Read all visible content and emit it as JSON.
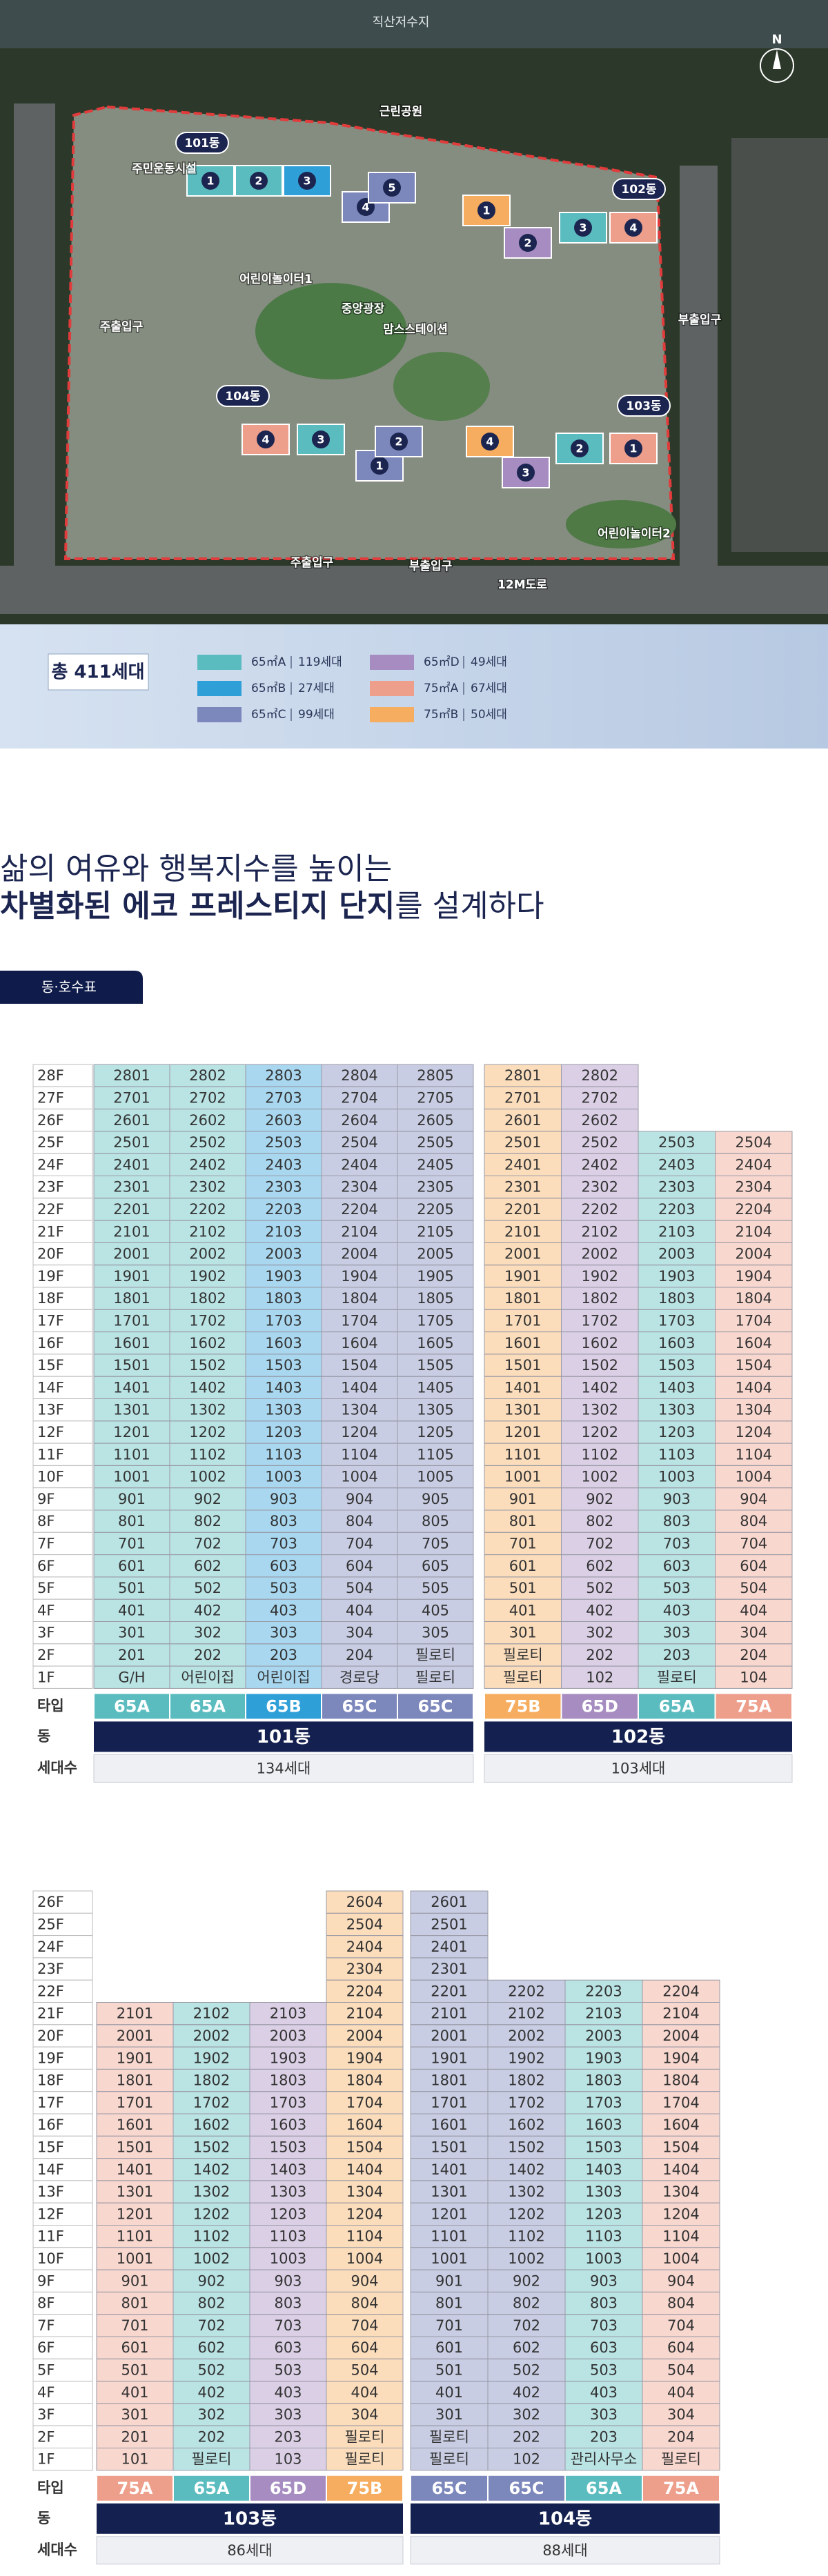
{
  "site_plan": {
    "reservoir": "직산저수지",
    "north": "N",
    "buildings": [
      {
        "name": "101동",
        "units": [
          {
            "no": "1",
            "color": "#5bbcbf"
          },
          {
            "no": "2",
            "color": "#5bbcbf"
          },
          {
            "no": "3",
            "color": "#2f9fd8"
          },
          {
            "no": "4",
            "color": "#7c87bc"
          },
          {
            "no": "5",
            "color": "#7c87bc"
          }
        ]
      },
      {
        "name": "102동",
        "units": [
          {
            "no": "1",
            "color": "#f6ad5f"
          },
          {
            "no": "2",
            "color": "#a68cc0"
          },
          {
            "no": "3",
            "color": "#5bbcbf"
          },
          {
            "no": "4",
            "color": "#ee9f8c"
          }
        ]
      },
      {
        "name": "103동",
        "units": [
          {
            "no": "4",
            "color": "#f6ad5f"
          },
          {
            "no": "3",
            "color": "#a68cc0"
          },
          {
            "no": "2",
            "color": "#5bbcbf"
          },
          {
            "no": "1",
            "color": "#ee9f8c"
          }
        ]
      },
      {
        "name": "104동",
        "units": [
          {
            "no": "4",
            "color": "#ee9f8c"
          },
          {
            "no": "3",
            "color": "#5bbcbf"
          },
          {
            "no": "1",
            "color": "#7c87bc"
          },
          {
            "no": "2",
            "color": "#7c87bc"
          }
        ]
      }
    ],
    "labels": [
      "주민운동시설",
      "어린이놀이터1",
      "중앙광장",
      "맘스스테이션",
      "주출입구",
      "부출입구",
      "주출입구",
      "부출입구",
      "어린이놀이터2",
      "12M도로",
      "근린공원"
    ],
    "total": "총 411세대",
    "legend": [
      {
        "name": "65㎡A",
        "count": "119세대",
        "color": "#5bbcbf"
      },
      {
        "name": "65㎡B",
        "count": "27세대",
        "color": "#2f9fd8"
      },
      {
        "name": "65㎡C",
        "count": "99세대",
        "color": "#7c87bc"
      },
      {
        "name": "65㎡D",
        "count": "49세대",
        "color": "#a68cc0"
      },
      {
        "name": "75㎡A",
        "count": "67세대",
        "color": "#ee9f8c"
      },
      {
        "name": "75㎡B",
        "count": "50세대",
        "color": "#f6ad5f"
      }
    ]
  },
  "headline": {
    "line1": "삶의 여유와 행복지수를 높이는",
    "line2_bold": "차별화된 에코 프레스티지 단지",
    "line2_rest": "를 설계하다"
  },
  "badge": "동·호수표",
  "footer_labels": [
    "타입",
    "동",
    "세대수"
  ],
  "tables": [
    {
      "floors": [
        "28F",
        "27F",
        "26F",
        "25F",
        "24F",
        "23F",
        "22F",
        "21F",
        "20F",
        "19F",
        "18F",
        "17F",
        "16F",
        "15F",
        "14F",
        "13F",
        "12F",
        "11F",
        "10F",
        "9F",
        "8F",
        "7F",
        "6F",
        "5F",
        "4F",
        "3F",
        "2F",
        "1F"
      ],
      "buildings": [
        {
          "name": "101동",
          "households": "134세대",
          "columns": [
            {
              "type": "65A",
              "color": "#5bbcbf",
              "cells": [
                2801,
                2701,
                2601,
                2501,
                2401,
                2301,
                2201,
                2101,
                2001,
                1901,
                1801,
                1701,
                1601,
                1501,
                1401,
                1301,
                1201,
                1101,
                1001,
                901,
                801,
                701,
                601,
                501,
                401,
                301,
                201,
                "G/H"
              ]
            },
            {
              "type": "65A",
              "color": "#5bbcbf",
              "cells": [
                2802,
                2702,
                2602,
                2502,
                2402,
                2302,
                2202,
                2102,
                2002,
                1902,
                1802,
                1702,
                1602,
                1502,
                1402,
                1302,
                1202,
                1102,
                1002,
                902,
                802,
                702,
                602,
                502,
                402,
                302,
                202,
                "어린이집"
              ]
            },
            {
              "type": "65B",
              "color": "#2f9fd8",
              "cells": [
                2803,
                2703,
                2603,
                2503,
                2403,
                2303,
                2203,
                2103,
                2003,
                1903,
                1803,
                1703,
                1603,
                1503,
                1403,
                1303,
                1203,
                1103,
                1003,
                903,
                803,
                703,
                603,
                503,
                403,
                303,
                203,
                "어린이집"
              ]
            },
            {
              "type": "65C",
              "color": "#7c87bc",
              "cells": [
                2804,
                2704,
                2604,
                2504,
                2404,
                2304,
                2204,
                2104,
                2004,
                1904,
                1804,
                1704,
                1604,
                1504,
                1404,
                1304,
                1204,
                1104,
                1004,
                904,
                804,
                704,
                604,
                504,
                404,
                304,
                204,
                "경로당"
              ]
            },
            {
              "type": "65C",
              "color": "#7c87bc",
              "cells": [
                2805,
                2705,
                2605,
                2505,
                2405,
                2305,
                2205,
                2105,
                2005,
                1905,
                1805,
                1705,
                1605,
                1505,
                1405,
                1305,
                1205,
                1105,
                1005,
                905,
                805,
                705,
                605,
                505,
                405,
                305,
                "필로티",
                "필로티"
              ]
            }
          ]
        },
        {
          "name": "102동",
          "households": "103세대",
          "columns": [
            {
              "type": "75B",
              "color": "#f6ad5f",
              "cells": [
                2801,
                2701,
                2601,
                2501,
                2401,
                2301,
                2201,
                2101,
                2001,
                1901,
                1801,
                1701,
                1601,
                1501,
                1401,
                1301,
                1201,
                1101,
                1001,
                901,
                801,
                701,
                601,
                501,
                401,
                301,
                "필로티",
                "필로티"
              ]
            },
            {
              "type": "65D",
              "color": "#a68cc0",
              "cells": [
                2802,
                2702,
                2602,
                2502,
                2402,
                2302,
                2202,
                2102,
                2002,
                1902,
                1802,
                1702,
                1602,
                1502,
                1402,
                1302,
                1202,
                1102,
                1002,
                902,
                802,
                702,
                602,
                502,
                402,
                302,
                202,
                102
              ]
            },
            {
              "type": "65A",
              "color": "#5bbcbf",
              "cells": [
                2503,
                2403,
                2303,
                2203,
                2103,
                2003,
                1903,
                1803,
                1703,
                1603,
                1503,
                1403,
                1303,
                1203,
                1103,
                1003,
                903,
                803,
                703,
                603,
                503,
                403,
                303,
                203,
                "필로티"
              ]
            },
            {
              "type": "75A",
              "color": "#ee9f8c",
              "cells": [
                2504,
                2404,
                2304,
                2204,
                2104,
                2004,
                1904,
                1804,
                1704,
                1604,
                1504,
                1404,
                1304,
                1204,
                1104,
                1004,
                904,
                804,
                704,
                604,
                504,
                404,
                304,
                204,
                104
              ]
            }
          ]
        }
      ]
    },
    {
      "floors": [
        "26F",
        "25F",
        "24F",
        "23F",
        "22F",
        "21F",
        "20F",
        "19F",
        "18F",
        "17F",
        "16F",
        "15F",
        "14F",
        "13F",
        "12F",
        "11F",
        "10F",
        "9F",
        "8F",
        "7F",
        "6F",
        "5F",
        "4F",
        "3F",
        "2F",
        "1F"
      ],
      "buildings": [
        {
          "name": "103동",
          "households": "86세대",
          "columns": [
            {
              "type": "75A",
              "color": "#ee9f8c",
              "cells": [
                2101,
                2001,
                1901,
                1801,
                1701,
                1601,
                1501,
                1401,
                1301,
                1201,
                1101,
                1001,
                901,
                801,
                701,
                601,
                501,
                401,
                301,
                201,
                101
              ]
            },
            {
              "type": "65A",
              "color": "#5bbcbf",
              "cells": [
                2102,
                2002,
                1902,
                1802,
                1702,
                1602,
                1502,
                1402,
                1302,
                1202,
                1102,
                1002,
                902,
                802,
                702,
                602,
                502,
                402,
                302,
                202,
                "필로티"
              ]
            },
            {
              "type": "65D",
              "color": "#a68cc0",
              "cells": [
                2103,
                2003,
                1903,
                1803,
                1703,
                1603,
                1503,
                1403,
                1303,
                1203,
                1103,
                1003,
                903,
                803,
                703,
                603,
                503,
                403,
                303,
                203,
                103
              ]
            },
            {
              "type": "75B",
              "color": "#f6ad5f",
              "cells": [
                2604,
                2504,
                2404,
                2304,
                2204,
                2104,
                2004,
                1904,
                1804,
                1704,
                1604,
                1504,
                1404,
                1304,
                1204,
                1104,
                1004,
                904,
                804,
                704,
                604,
                504,
                404,
                304,
                "필로티",
                "필로티"
              ]
            }
          ]
        },
        {
          "name": "104동",
          "households": "88세대",
          "columns": [
            {
              "type": "65C",
              "color": "#7c87bc",
              "cells": [
                2601,
                2501,
                2401,
                2301,
                2201,
                2101,
                2001,
                1901,
                1801,
                1701,
                1601,
                1501,
                1401,
                1301,
                1201,
                1101,
                1001,
                901,
                801,
                701,
                601,
                501,
                401,
                301,
                "필로티",
                "필로티"
              ]
            },
            {
              "type": "65C",
              "color": "#7c87bc",
              "cells": [
                2202,
                2102,
                2002,
                1902,
                1802,
                1702,
                1602,
                1502,
                1402,
                1302,
                1202,
                1102,
                1002,
                902,
                802,
                702,
                602,
                502,
                402,
                302,
                202,
                102
              ]
            },
            {
              "type": "65A",
              "color": "#5bbcbf",
              "cells": [
                2203,
                2103,
                2003,
                1903,
                1803,
                1703,
                1603,
                1503,
                1403,
                1303,
                1203,
                1103,
                1003,
                903,
                803,
                703,
                603,
                503,
                403,
                303,
                203,
                "관리사무소"
              ]
            },
            {
              "type": "75A",
              "color": "#ee9f8c",
              "cells": [
                2204,
                2104,
                2004,
                1904,
                1804,
                1704,
                1604,
                1504,
                1404,
                1304,
                1204,
                1104,
                1004,
                904,
                804,
                704,
                604,
                504,
                404,
                304,
                204,
                "필로티"
              ]
            }
          ]
        }
      ]
    }
  ]
}
